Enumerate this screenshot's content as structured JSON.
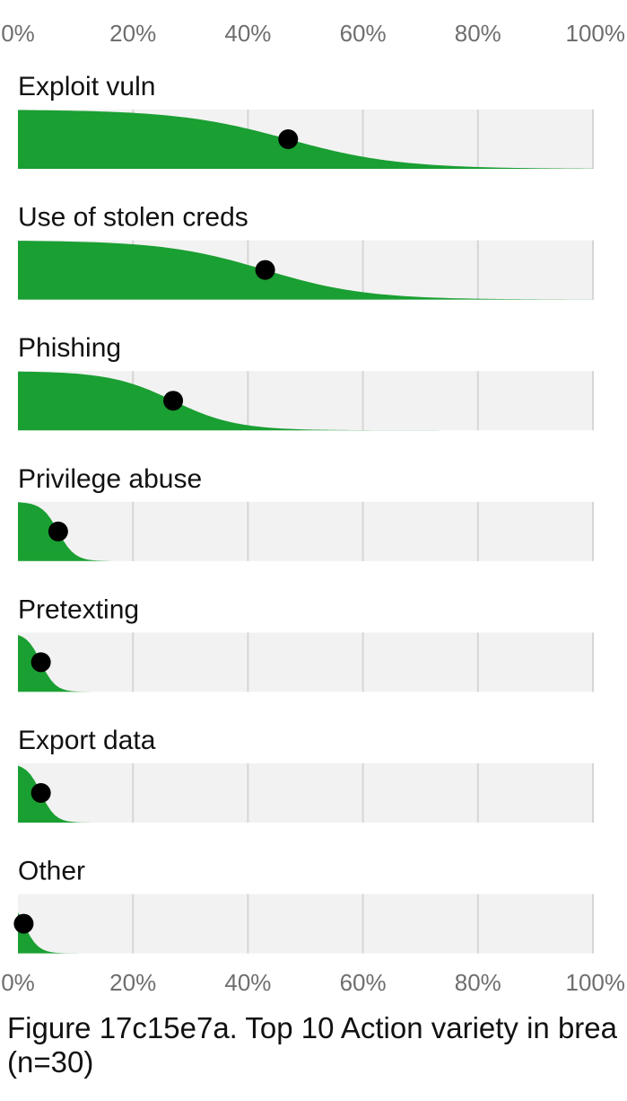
{
  "chart_data": {
    "type": "area",
    "xlim": [
      0,
      100
    ],
    "x_ticks": [
      "0%",
      "20%",
      "40%",
      "60%",
      "80%",
      "100%"
    ],
    "categories": [
      "Exploit vuln",
      "Use of stolen creds",
      "Phishing",
      "Privilege abuse",
      "Pretexting",
      "Export data",
      "Other"
    ],
    "values": [
      47,
      43,
      27,
      7,
      4,
      4,
      1
    ],
    "grid": true,
    "colors": {
      "fill": "#1a9f32",
      "track": "#f2f2f2",
      "grid": "#d6d6d6",
      "dot": "#000000"
    }
  },
  "caption": {
    "line1": "Figure 17c15e7a. Top 10 Action variety in brea",
    "line2": "(n=30)"
  }
}
